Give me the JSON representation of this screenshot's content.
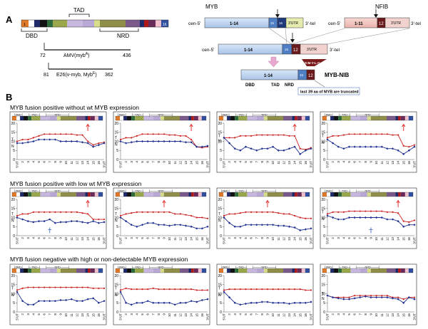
{
  "panelA": {
    "letter": "A",
    "domain_labels": {
      "tad": "TAD",
      "dbd": "DBD",
      "nrd": "NRD"
    },
    "segment_labels": {
      "first": "1",
      "last": "16"
    },
    "amv": {
      "start": "72",
      "end": "436",
      "label": "AMV(myb",
      "sup": "A",
      "close": ")"
    },
    "e26": {
      "start": "81",
      "end": "362",
      "label_a": "E26(v-myb, Myb",
      "sup": "E",
      "close": ")"
    },
    "myb": {
      "title": "MYB",
      "cen": "cen-5'",
      "exons": "1-14",
      "e15": "15",
      "e16": "16",
      "utr": "3'UTR",
      "tel": "3'-tel"
    },
    "nfib": {
      "title": "NFIB",
      "cen": "cen-5'",
      "exons": "1-11",
      "e12": "12",
      "utr": "3'UTR",
      "tel": "3'-tel"
    },
    "fusion": {
      "cen": "cen-5'",
      "exons": "1-14",
      "e15": "15",
      "e12": "12",
      "utr": "3'UTR",
      "tel": "3'-tel"
    },
    "protein": {
      "exons": "1-14",
      "e15": "15",
      "e12": "12",
      "label": "MYB-NIB",
      "peptide": "S-M-Y-L-G",
      "dbd": "DBD",
      "tad": "TAD",
      "nrd": "NRD",
      "note": "last 39 aa of MYB are truncated"
    }
  },
  "panelB": {
    "letter": "B",
    "sections": [
      {
        "title": "MYB fusion positive without wt MYB expression"
      },
      {
        "title": "MYB fusion positive with low wt MYB expression"
      },
      {
        "title": "MYB fusion negative with high or non-detectable MYB expression"
      }
    ],
    "mini_domain": {
      "dbd": "DBD",
      "tad": "TAD",
      "nrd": "NRD"
    },
    "series_labels": {
      "t": "T",
      "n": "N"
    },
    "colors": {
      "t": "#cc2222",
      "n": "#1f2f8f",
      "arrow": "#e02020",
      "cross": "#4a6fbf",
      "box": "#222222",
      "minor": "#888888"
    }
  },
  "chart_data": {
    "type": "line",
    "x": [
      "5'UT",
      "2",
      "3",
      "4",
      "5",
      "6",
      "7",
      "8",
      "9",
      "10",
      "11",
      "12",
      "13",
      "14",
      "15",
      "16",
      "3'UT"
    ],
    "ylim": [
      0,
      20
    ],
    "yticks": [
      0,
      5,
      10,
      15,
      20
    ],
    "panels": [
      {
        "row": 0,
        "col": 0,
        "arrow_at": "14",
        "series": [
          {
            "name": "T",
            "values": [
              10,
              11,
              11,
              12,
              13,
              14,
              14,
              14,
              14,
              14,
              14,
              13.5,
              13.5,
              10,
              8,
              9,
              9.5
            ]
          },
          {
            "name": "N",
            "values": [
              9,
              9,
              9.5,
              10,
              11,
              11,
              11,
              11,
              10,
              10,
              10,
              10,
              9.5,
              9,
              7,
              8,
              9
            ]
          }
        ]
      },
      {
        "row": 0,
        "col": 1,
        "arrow_at": "14",
        "series": [
          {
            "name": "T",
            "values": [
              11,
              12,
              12,
              13,
              14,
              14,
              14,
              14,
              14,
              13.5,
              13.5,
              13,
              13,
              11,
              7,
              6.5,
              7
            ]
          },
          {
            "name": "N",
            "values": [
              10,
              9,
              9.5,
              10,
              10,
              10,
              10,
              10,
              10,
              10,
              10,
              10,
              9.5,
              9.5,
              7,
              7,
              7.5
            ]
          }
        ]
      },
      {
        "row": 0,
        "col": 2,
        "arrow_at": "14",
        "series": [
          {
            "name": "T",
            "values": [
              12,
              12,
              12,
              13,
              13,
              13,
              13.5,
              13.5,
              13.5,
              13.5,
              13.5,
              13.5,
              13,
              13,
              6,
              5.5,
              6.5
            ]
          },
          {
            "name": "N",
            "values": [
              12,
              9,
              6,
              5,
              7,
              6,
              5,
              6,
              6,
              7,
              5,
              5,
              6,
              7,
              3,
              5,
              6
            ]
          }
        ]
      },
      {
        "row": 0,
        "col": 3,
        "arrow_at": "15",
        "series": [
          {
            "name": "T",
            "values": [
              12,
              13,
              13,
              13.5,
              14,
              14,
              14,
              14,
              14,
              14,
              14,
              14,
              13.5,
              13.5,
              7.5,
              7,
              8
            ]
          },
          {
            "name": "N",
            "values": [
              11,
              9,
              7,
              6,
              7,
              7,
              7,
              7,
              7,
              7,
              7,
              6,
              6,
              5,
              3,
              5,
              7
            ]
          }
        ]
      },
      {
        "row": 1,
        "col": 0,
        "arrow_at": "14",
        "cross_at": "7",
        "series": [
          {
            "name": "T",
            "values": [
              11,
              12,
              12,
              13,
              13,
              13,
              13,
              13,
              13,
              13,
              13,
              13,
              12.5,
              12,
              9,
              9,
              9
            ]
          },
          {
            "name": "N",
            "values": [
              10,
              9,
              8,
              7.5,
              8,
              8,
              9,
              7,
              7.5,
              7.5,
              8,
              8,
              7.5,
              7,
              8,
              7,
              7.5
            ]
          }
        ]
      },
      {
        "row": 1,
        "col": 1,
        "arrow_at": "9",
        "series": [
          {
            "name": "T",
            "values": [
              11,
              12,
              12.5,
              13,
              13,
              13,
              13,
              13,
              13,
              13,
              12,
              12,
              11.5,
              11,
              10,
              10,
              9.5
            ]
          },
          {
            "name": "N",
            "values": [
              10,
              8,
              6,
              5,
              6,
              7,
              7,
              6,
              6,
              5.5,
              6,
              6,
              5.5,
              5,
              4,
              4,
              5
            ]
          }
        ]
      },
      {
        "row": 1,
        "col": 2,
        "arrow_at": "9",
        "series": [
          {
            "name": "T",
            "values": [
              11,
              12,
              12,
              12.5,
              13,
              13,
              13,
              13,
              13,
              13,
              12.5,
              12,
              12,
              11,
              10,
              9.5,
              9.5
            ]
          },
          {
            "name": "N",
            "values": [
              10,
              7,
              5,
              5,
              6,
              6,
              6,
              6,
              6,
              6,
              5.5,
              5.5,
              5,
              4.5,
              3,
              3.5,
              4
            ]
          }
        ]
      },
      {
        "row": 1,
        "col": 3,
        "arrow_at": "14",
        "cross_at": "9",
        "series": [
          {
            "name": "T",
            "values": [
              12,
              13,
              13,
              13,
              13.5,
              13.5,
              13.5,
              13.5,
              13.5,
              13.5,
              13.5,
              13,
              13,
              12.5,
              8,
              7.5,
              8.5
            ]
          },
          {
            "name": "N",
            "values": [
              11,
              10,
              9,
              9,
              10,
              10,
              10,
              10,
              10,
              10,
              10,
              9,
              9,
              8,
              5,
              6,
              6
            ]
          }
        ]
      },
      {
        "row": 2,
        "col": 0,
        "series": [
          {
            "name": "T",
            "values": [
              12,
              13,
              13.5,
              13.5,
              13.5,
              13.5,
              13.5,
              13.5,
              13.5,
              13.5,
              13.5,
              13.5,
              13.5,
              13.5,
              13,
              13,
              13
            ]
          },
          {
            "name": "N",
            "values": [
              11,
              6,
              4,
              4,
              6,
              6,
              6,
              6,
              6.5,
              6.5,
              7,
              6,
              6,
              7,
              7.5,
              5,
              6
            ]
          }
        ]
      },
      {
        "row": 2,
        "col": 1,
        "series": [
          {
            "name": "T",
            "values": [
              12,
              13,
              12.5,
              12.5,
              12.5,
              12.5,
              13,
              12.5,
              12.5,
              12.5,
              12.5,
              12.5,
              12.5,
              12.5,
              12,
              12,
              12
            ]
          },
          {
            "name": "N",
            "values": [
              11,
              5,
              4,
              5,
              5,
              6,
              5,
              5,
              5,
              5,
              4,
              5,
              5,
              6,
              5.5,
              6.5,
              7
            ]
          }
        ]
      },
      {
        "row": 2,
        "col": 2,
        "series": [
          {
            "name": "T",
            "values": [
              12,
              12.5,
              12.5,
              12.5,
              12.5,
              12.5,
              12.5,
              12.5,
              12.5,
              12.5,
              12.5,
              12.5,
              12.5,
              12.5,
              12.5,
              12,
              12
            ]
          },
          {
            "name": "N",
            "values": [
              11,
              8,
              5,
              4,
              4.5,
              5,
              5,
              5.5,
              5.5,
              5,
              5,
              5,
              4.5,
              5,
              5,
              5,
              5.5
            ]
          }
        ]
      },
      {
        "row": 2,
        "col": 3,
        "series": [
          {
            "name": "T",
            "values": [
              9,
              8,
              8,
              8,
              8,
              9,
              9,
              9,
              9,
              9,
              9,
              9,
              8,
              8,
              7,
              8,
              8
            ]
          },
          {
            "name": "N",
            "values": [
              9,
              8,
              7.5,
              7,
              7,
              7.5,
              8,
              8.5,
              8,
              8,
              8,
              8,
              7.5,
              7,
              5,
              8,
              7
            ]
          }
        ]
      }
    ]
  }
}
